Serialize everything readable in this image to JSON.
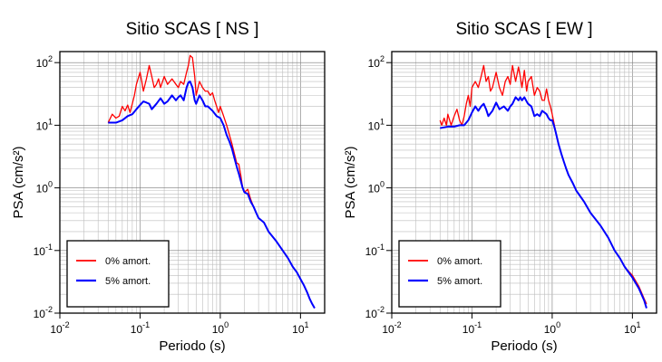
{
  "chart_data": [
    {
      "type": "line",
      "title": "Sitio SCAS [ NS ]",
      "xlabel": "Periodo (s)",
      "ylabel": "PSA (cm/s²)",
      "xscale": "log",
      "yscale": "log",
      "xlim": [
        0.01,
        20
      ],
      "ylim": [
        0.01,
        150
      ],
      "x_ticks": [
        {
          "base": "10",
          "exp": "-2"
        },
        {
          "base": "10",
          "exp": "-1"
        },
        {
          "base": "10",
          "exp": "0"
        },
        {
          "base": "10",
          "exp": "1"
        }
      ],
      "y_ticks": [
        {
          "base": "10",
          "exp": "-2"
        },
        {
          "base": "10",
          "exp": "-1"
        },
        {
          "base": "10",
          "exp": "0"
        },
        {
          "base": "10",
          "exp": "1"
        },
        {
          "base": "10",
          "exp": "2"
        }
      ],
      "grid": true,
      "legend_position": "bottom-left",
      "series": [
        {
          "name": "0% amort.",
          "color": "#ff0000",
          "points": [
            [
              0.04,
              11
            ],
            [
              0.045,
              15
            ],
            [
              0.05,
              13
            ],
            [
              0.055,
              14
            ],
            [
              0.06,
              20
            ],
            [
              0.065,
              17
            ],
            [
              0.07,
              21
            ],
            [
              0.075,
              16
            ],
            [
              0.08,
              22
            ],
            [
              0.085,
              30
            ],
            [
              0.09,
              45
            ],
            [
              0.1,
              70
            ],
            [
              0.105,
              50
            ],
            [
              0.11,
              35
            ],
            [
              0.12,
              55
            ],
            [
              0.13,
              90
            ],
            [
              0.14,
              60
            ],
            [
              0.15,
              40
            ],
            [
              0.16,
              45
            ],
            [
              0.17,
              55
            ],
            [
              0.18,
              40
            ],
            [
              0.2,
              60
            ],
            [
              0.22,
              45
            ],
            [
              0.25,
              55
            ],
            [
              0.28,
              45
            ],
            [
              0.3,
              40
            ],
            [
              0.32,
              50
            ],
            [
              0.35,
              45
            ],
            [
              0.38,
              70
            ],
            [
              0.4,
              90
            ],
            [
              0.42,
              130
            ],
            [
              0.45,
              120
            ],
            [
              0.48,
              60
            ],
            [
              0.5,
              30
            ],
            [
              0.55,
              50
            ],
            [
              0.6,
              40
            ],
            [
              0.65,
              35
            ],
            [
              0.7,
              35
            ],
            [
              0.75,
              30
            ],
            [
              0.8,
              33
            ],
            [
              0.85,
              25
            ],
            [
              0.9,
              20
            ],
            [
              0.95,
              16
            ],
            [
              1.0,
              20
            ],
            [
              1.1,
              14
            ],
            [
              1.2,
              10
            ],
            [
              1.3,
              7
            ],
            [
              1.4,
              5
            ],
            [
              1.5,
              3.5
            ],
            [
              1.6,
              2.5
            ],
            [
              1.7,
              2.4
            ],
            [
              1.8,
              1.6
            ],
            [
              1.9,
              1.0
            ],
            [
              2.0,
              0.85
            ],
            [
              2.2,
              0.95
            ],
            [
              2.4,
              0.65
            ],
            [
              2.6,
              0.5
            ],
            [
              2.8,
              0.4
            ],
            [
              3.0,
              0.33
            ],
            [
              3.5,
              0.28
            ],
            [
              4.0,
              0.2
            ],
            [
              5,
              0.14
            ],
            [
              6,
              0.1
            ],
            [
              7,
              0.075
            ],
            [
              8,
              0.055
            ],
            [
              9,
              0.045
            ],
            [
              10,
              0.035
            ],
            [
              11,
              0.028
            ],
            [
              12,
              0.022
            ],
            [
              13,
              0.017
            ],
            [
              14,
              0.014
            ],
            [
              15,
              0.012
            ]
          ]
        },
        {
          "name": "5% amort.",
          "color": "#0000ff",
          "points": [
            [
              0.04,
              11
            ],
            [
              0.05,
              11
            ],
            [
              0.06,
              12
            ],
            [
              0.07,
              14
            ],
            [
              0.08,
              15
            ],
            [
              0.09,
              18
            ],
            [
              0.1,
              21
            ],
            [
              0.11,
              24
            ],
            [
              0.12,
              23
            ],
            [
              0.13,
              22
            ],
            [
              0.14,
              18
            ],
            [
              0.15,
              20
            ],
            [
              0.16,
              22
            ],
            [
              0.18,
              27
            ],
            [
              0.2,
              22
            ],
            [
              0.22,
              24
            ],
            [
              0.25,
              30
            ],
            [
              0.28,
              25
            ],
            [
              0.3,
              28
            ],
            [
              0.32,
              30
            ],
            [
              0.35,
              25
            ],
            [
              0.38,
              40
            ],
            [
              0.4,
              48
            ],
            [
              0.42,
              50
            ],
            [
              0.45,
              40
            ],
            [
              0.48,
              25
            ],
            [
              0.5,
              22
            ],
            [
              0.55,
              30
            ],
            [
              0.6,
              25
            ],
            [
              0.65,
              20
            ],
            [
              0.7,
              20
            ],
            [
              0.8,
              17
            ],
            [
              0.9,
              14
            ],
            [
              1.0,
              13
            ],
            [
              1.1,
              10
            ],
            [
              1.2,
              7
            ],
            [
              1.3,
              5.5
            ],
            [
              1.4,
              4.2
            ],
            [
              1.5,
              3
            ],
            [
              1.6,
              2.2
            ],
            [
              1.7,
              1.7
            ],
            [
              1.8,
              1.3
            ],
            [
              1.9,
              1.0
            ],
            [
              2.0,
              0.85
            ],
            [
              2.2,
              0.8
            ],
            [
              2.4,
              0.6
            ],
            [
              2.6,
              0.5
            ],
            [
              2.8,
              0.4
            ],
            [
              3.0,
              0.33
            ],
            [
              3.5,
              0.28
            ],
            [
              4.0,
              0.2
            ],
            [
              5,
              0.14
            ],
            [
              6,
              0.1
            ],
            [
              7,
              0.075
            ],
            [
              8,
              0.055
            ],
            [
              9,
              0.045
            ],
            [
              10,
              0.035
            ],
            [
              11,
              0.028
            ],
            [
              12,
              0.022
            ],
            [
              13,
              0.017
            ],
            [
              14,
              0.014
            ],
            [
              15,
              0.012
            ]
          ]
        }
      ]
    },
    {
      "type": "line",
      "title": "Sitio SCAS [ EW ]",
      "xlabel": "Periodo (s)",
      "ylabel": "PSA (cm/s²)",
      "xscale": "log",
      "yscale": "log",
      "xlim": [
        0.01,
        20
      ],
      "ylim": [
        0.01,
        150
      ],
      "x_ticks": [
        {
          "base": "10",
          "exp": "-2"
        },
        {
          "base": "10",
          "exp": "-1"
        },
        {
          "base": "10",
          "exp": "0"
        },
        {
          "base": "10",
          "exp": "1"
        }
      ],
      "y_ticks": [
        {
          "base": "10",
          "exp": "-2"
        },
        {
          "base": "10",
          "exp": "-1"
        },
        {
          "base": "10",
          "exp": "0"
        },
        {
          "base": "10",
          "exp": "1"
        },
        {
          "base": "10",
          "exp": "2"
        }
      ],
      "grid": true,
      "legend_position": "bottom-left",
      "series": [
        {
          "name": "0% amort.",
          "color": "#ff0000",
          "points": [
            [
              0.04,
              12
            ],
            [
              0.042,
              10
            ],
            [
              0.045,
              13
            ],
            [
              0.048,
              10
            ],
            [
              0.05,
              15
            ],
            [
              0.055,
              10
            ],
            [
              0.06,
              14
            ],
            [
              0.065,
              18
            ],
            [
              0.07,
              12
            ],
            [
              0.075,
              10
            ],
            [
              0.08,
              14
            ],
            [
              0.085,
              22
            ],
            [
              0.09,
              30
            ],
            [
              0.095,
              20
            ],
            [
              0.1,
              40
            ],
            [
              0.11,
              50
            ],
            [
              0.12,
              40
            ],
            [
              0.13,
              60
            ],
            [
              0.14,
              90
            ],
            [
              0.15,
              50
            ],
            [
              0.16,
              60
            ],
            [
              0.17,
              35
            ],
            [
              0.18,
              40
            ],
            [
              0.2,
              70
            ],
            [
              0.22,
              40
            ],
            [
              0.24,
              30
            ],
            [
              0.26,
              50
            ],
            [
              0.28,
              60
            ],
            [
              0.3,
              45
            ],
            [
              0.32,
              90
            ],
            [
              0.35,
              50
            ],
            [
              0.38,
              85
            ],
            [
              0.4,
              60
            ],
            [
              0.42,
              40
            ],
            [
              0.45,
              75
            ],
            [
              0.48,
              35
            ],
            [
              0.5,
              50
            ],
            [
              0.55,
              60
            ],
            [
              0.6,
              30
            ],
            [
              0.65,
              40
            ],
            [
              0.7,
              35
            ],
            [
              0.75,
              25
            ],
            [
              0.8,
              25
            ],
            [
              0.85,
              38
            ],
            [
              0.9,
              25
            ],
            [
              0.95,
              20
            ],
            [
              1.0,
              15
            ],
            [
              1.05,
              11
            ],
            [
              1.1,
              8
            ],
            [
              1.2,
              5
            ],
            [
              1.3,
              3.5
            ],
            [
              1.4,
              2.6
            ],
            [
              1.5,
              2.0
            ],
            [
              1.6,
              1.6
            ],
            [
              1.8,
              1.2
            ],
            [
              2.0,
              0.9
            ],
            [
              2.5,
              0.6
            ],
            [
              3,
              0.4
            ],
            [
              4,
              0.25
            ],
            [
              5,
              0.16
            ],
            [
              6,
              0.1
            ],
            [
              7,
              0.075
            ],
            [
              8,
              0.055
            ],
            [
              10,
              0.04
            ],
            [
              12,
              0.027
            ],
            [
              14,
              0.017
            ],
            [
              15,
              0.014
            ]
          ]
        },
        {
          "name": "5% amort.",
          "color": "#0000ff",
          "points": [
            [
              0.04,
              9
            ],
            [
              0.05,
              9.5
            ],
            [
              0.06,
              9.5
            ],
            [
              0.07,
              10
            ],
            [
              0.08,
              10
            ],
            [
              0.09,
              12
            ],
            [
              0.1,
              16
            ],
            [
              0.11,
              20
            ],
            [
              0.12,
              17
            ],
            [
              0.13,
              20
            ],
            [
              0.14,
              22
            ],
            [
              0.15,
              18
            ],
            [
              0.16,
              14
            ],
            [
              0.18,
              17
            ],
            [
              0.2,
              23
            ],
            [
              0.22,
              18
            ],
            [
              0.25,
              20
            ],
            [
              0.28,
              17
            ],
            [
              0.3,
              20
            ],
            [
              0.32,
              22
            ],
            [
              0.35,
              28
            ],
            [
              0.38,
              25
            ],
            [
              0.4,
              28
            ],
            [
              0.42,
              25
            ],
            [
              0.45,
              28
            ],
            [
              0.48,
              24
            ],
            [
              0.5,
              22
            ],
            [
              0.55,
              20
            ],
            [
              0.6,
              14
            ],
            [
              0.65,
              15
            ],
            [
              0.7,
              14
            ],
            [
              0.75,
              17
            ],
            [
              0.8,
              16
            ],
            [
              0.85,
              15
            ],
            [
              0.9,
              13
            ],
            [
              0.95,
              12
            ],
            [
              1.0,
              12
            ],
            [
              1.05,
              10
            ],
            [
              1.1,
              8
            ],
            [
              1.2,
              5
            ],
            [
              1.3,
              3.5
            ],
            [
              1.4,
              2.6
            ],
            [
              1.5,
              2.0
            ],
            [
              1.6,
              1.6
            ],
            [
              1.8,
              1.2
            ],
            [
              2.0,
              0.9
            ],
            [
              2.5,
              0.6
            ],
            [
              3,
              0.4
            ],
            [
              4,
              0.25
            ],
            [
              5,
              0.16
            ],
            [
              6,
              0.1
            ],
            [
              7,
              0.075
            ],
            [
              8,
              0.055
            ],
            [
              10,
              0.037
            ],
            [
              12,
              0.025
            ],
            [
              14,
              0.016
            ],
            [
              15,
              0.012
            ]
          ]
        }
      ]
    }
  ]
}
